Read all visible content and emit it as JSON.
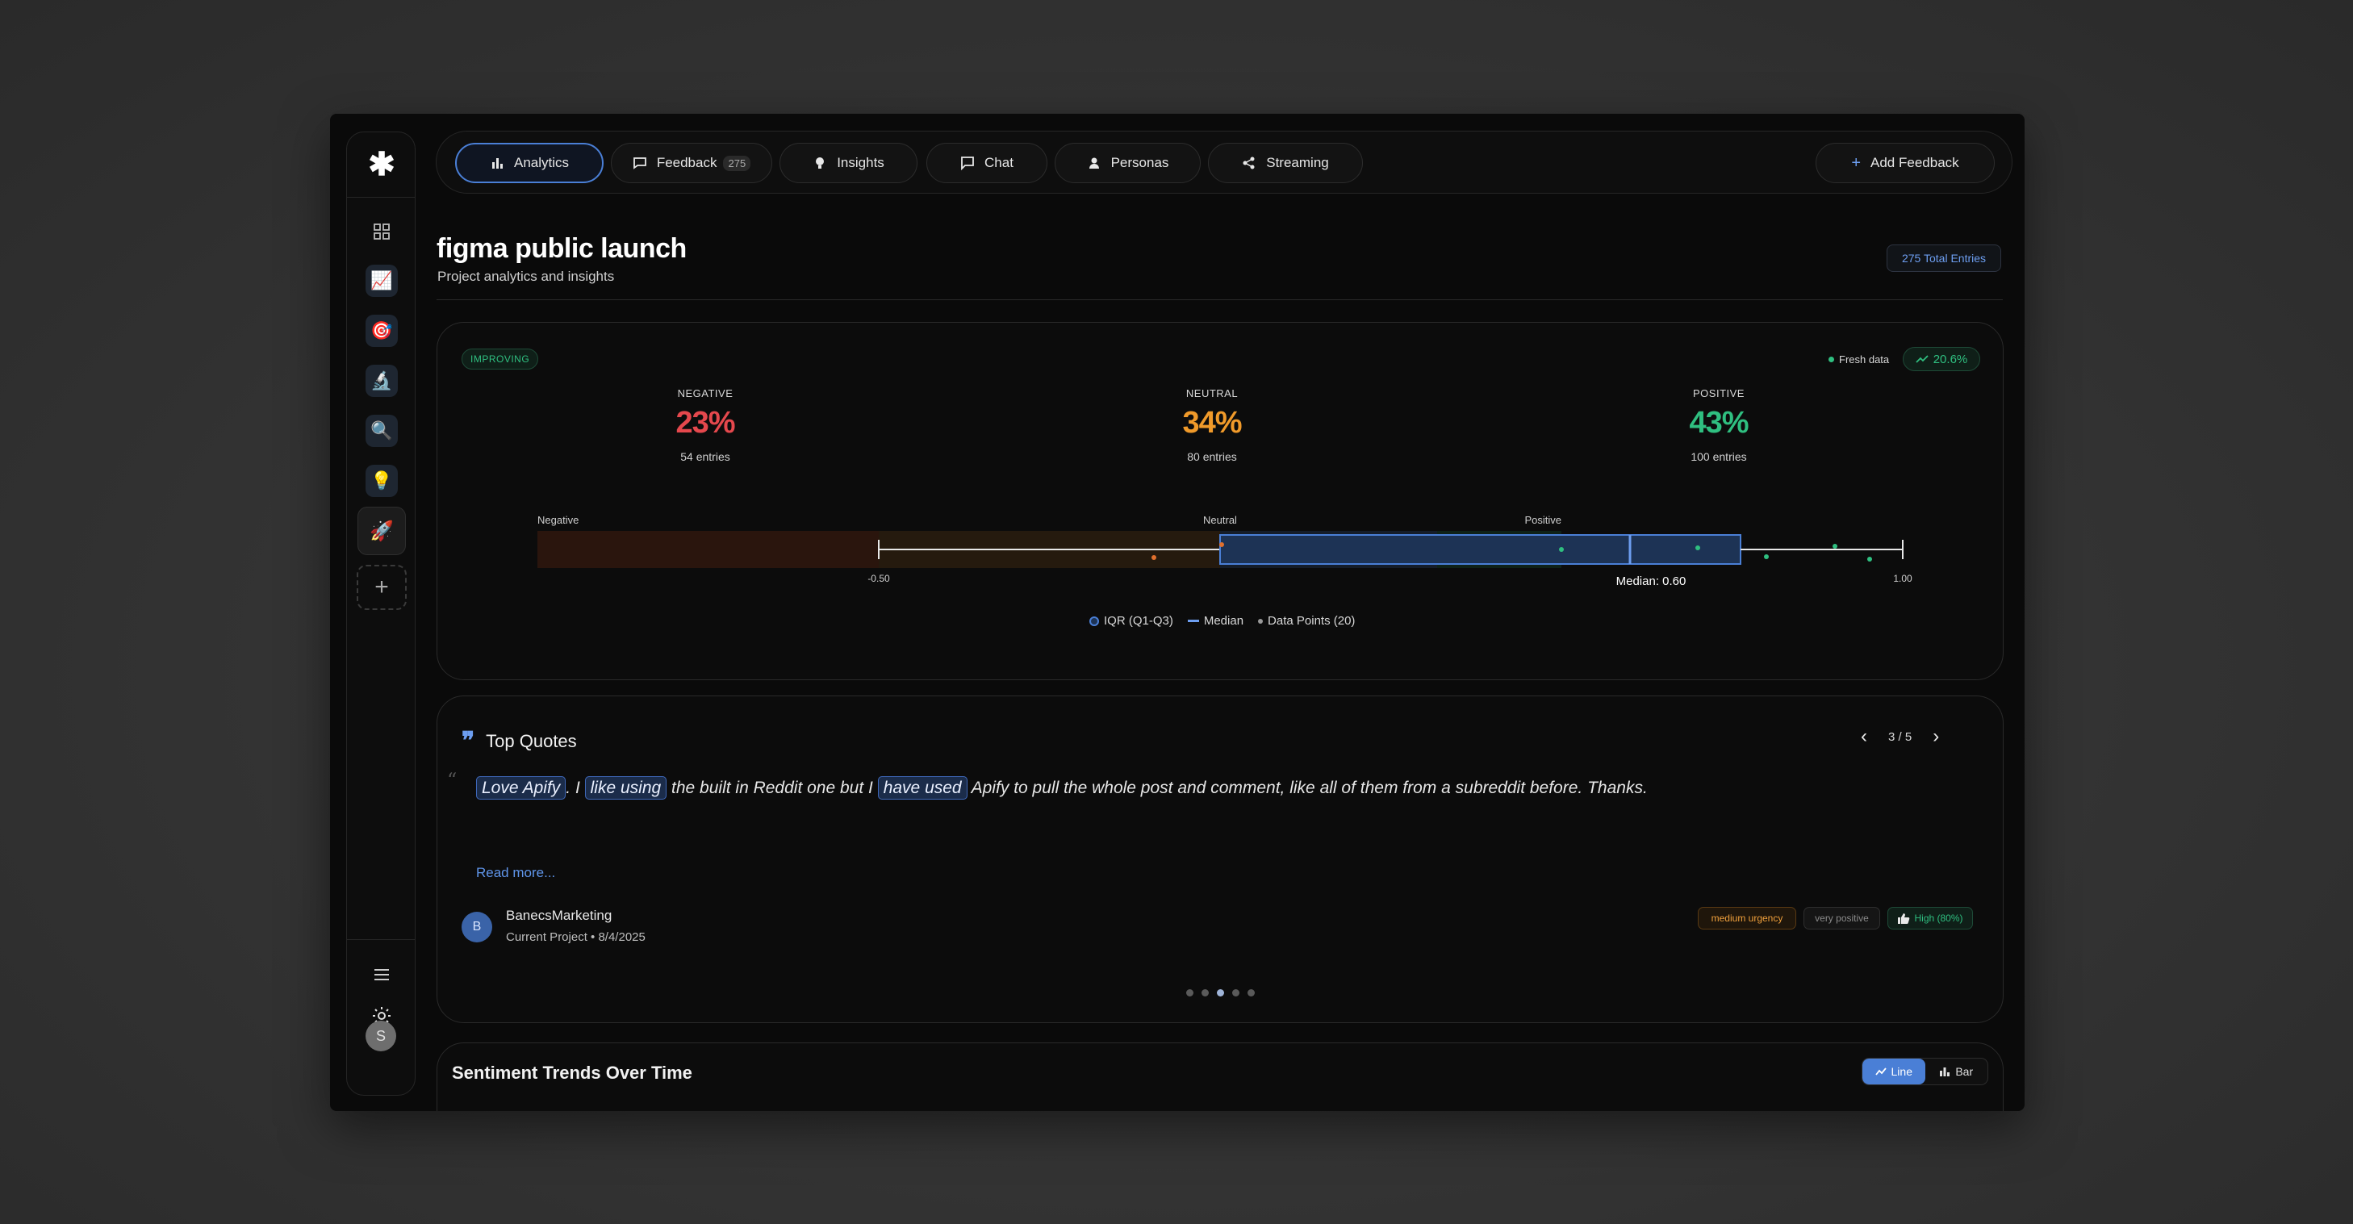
{
  "app": {
    "logo": "✱",
    "sidebar": {
      "emoji_items": [
        "📈",
        "🎯",
        "🔬",
        "🔍",
        "💡",
        "🚀"
      ],
      "add_label": "+",
      "user_initial": "S"
    },
    "nav": {
      "tabs": [
        {
          "label": "Analytics",
          "icon": "bar-chart-icon",
          "active": true
        },
        {
          "label": "Feedback",
          "icon": "message-icon",
          "count": "275"
        },
        {
          "label": "Insights",
          "icon": "lightbulb-icon"
        },
        {
          "label": "Chat",
          "icon": "chat-icon"
        },
        {
          "label": "Personas",
          "icon": "person-icon"
        },
        {
          "label": "Streaming",
          "icon": "share-icon"
        }
      ],
      "add_feedback": "Add Feedback",
      "add_icon": "+"
    }
  },
  "header": {
    "title": "figma public launch",
    "subtitle": "Project analytics and insights",
    "total_entries": "275 Total Entries"
  },
  "sentiment": {
    "status": "IMPROVING",
    "fresh_label": "Fresh data",
    "trend_pct": "20.6%",
    "stats": [
      {
        "label": "NEGATIVE",
        "value": "23%",
        "entries": "54 entries",
        "color": "#e5484d"
      },
      {
        "label": "NEUTRAL",
        "value": "34%",
        "entries": "80 entries",
        "color": "#f09a2a"
      },
      {
        "label": "POSITIVE",
        "value": "43%",
        "entries": "100 entries",
        "color": "#2fbf80"
      }
    ],
    "boxplot": {
      "zone_labels": [
        "Negative",
        "Neutral",
        "Positive"
      ],
      "tick_min": "-0.50",
      "tick_max": "1.00",
      "median_label": "Median: 0.60",
      "median": 0.6,
      "q1": 0.0,
      "q3": 0.82,
      "whisker_min": -0.5,
      "whisker_max": 1.0
    },
    "legend": {
      "iqr": "IQR (Q1-Q3)",
      "median": "Median",
      "points": "Data Points (20)"
    }
  },
  "quotes": {
    "title": "Top Quotes",
    "pager": "3 / 5",
    "open_mark": "“",
    "segments": [
      {
        "text": "Love Apify",
        "hl": true
      },
      {
        "text": ". I ",
        "hl": false
      },
      {
        "text": "like using",
        "hl": true
      },
      {
        "text": " the built in Reddit one but I ",
        "hl": false
      },
      {
        "text": "have used",
        "hl": true
      },
      {
        "text": " Apify to pull the whole post and comment, like all of them from a subreddit before. Thanks.",
        "hl": false
      }
    ],
    "read_more": "Read more...",
    "author": {
      "initial": "B",
      "name": "BanecsMarketing",
      "meta": "Current Project • 8/4/2025"
    },
    "tags": {
      "urgency": "medium urgency",
      "sentiment": "very positive",
      "score": "High (80%)"
    }
  },
  "trends": {
    "title": "Sentiment Trends Over Time",
    "line_label": "Line",
    "bar_label": "Bar"
  }
}
